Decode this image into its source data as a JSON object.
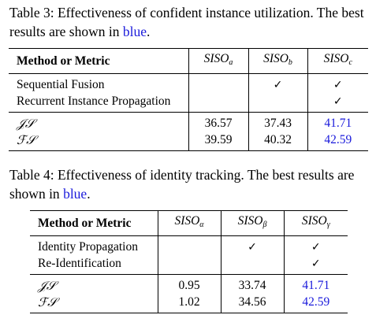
{
  "table3": {
    "caption_main": "Table 3: Effectiveness of confident instance utilization. The best results are shown in ",
    "caption_blue": "blue",
    "caption_end": ".",
    "header": {
      "method": "Method or Metric",
      "col1_base": "SISO",
      "col1_sub": "a",
      "col2_base": "SISO",
      "col2_sub": "b",
      "col3_base": "SISO",
      "col3_sub": "c"
    },
    "methods": [
      {
        "label": "Sequential Fusion",
        "c1": "",
        "c2": "✓",
        "c3": "✓"
      },
      {
        "label": "Recurrent Instance Propagation",
        "c1": "",
        "c2": "",
        "c3": "✓"
      }
    ],
    "metrics": [
      {
        "label": "𝒥𝒮",
        "c1": "36.57",
        "c2": "37.43",
        "c3": "41.71"
      },
      {
        "label": "ℱ𝒮",
        "c1": "39.59",
        "c2": "40.32",
        "c3": "42.59"
      }
    ]
  },
  "table4": {
    "caption_main": "Table 4: Effectiveness of identity tracking. The best results are shown in ",
    "caption_blue": "blue",
    "caption_end": ".",
    "header": {
      "method": "Method or Metric",
      "col1_base": "SISO",
      "col1_sub": "α",
      "col2_base": "SISO",
      "col2_sub": "β",
      "col3_base": "SISO",
      "col3_sub": "γ"
    },
    "methods": [
      {
        "label": "Identity Propagation",
        "c1": "",
        "c2": "✓",
        "c3": "✓"
      },
      {
        "label": "Re-Identification",
        "c1": "",
        "c2": "",
        "c3": "✓"
      }
    ],
    "metrics": [
      {
        "label": "𝒥𝒮",
        "c1": "0.95",
        "c2": "33.74",
        "c3": "41.71"
      },
      {
        "label": "ℱ𝒮",
        "c1": "1.02",
        "c2": "34.56",
        "c3": "42.59"
      }
    ]
  },
  "colors": {
    "best": "#1a1adb",
    "text": "#000000"
  }
}
